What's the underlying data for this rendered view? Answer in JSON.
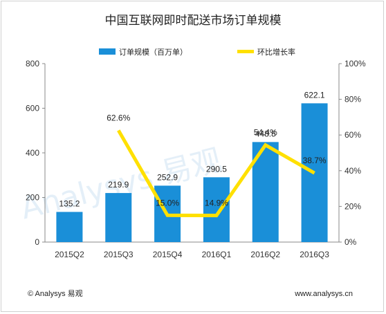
{
  "chart_data": {
    "type": "bar",
    "title": "中国互联网即时配送市场订单规模",
    "categories": [
      "2015Q2",
      "2015Q3",
      "2015Q4",
      "2016Q1",
      "2016Q2",
      "2016Q3"
    ],
    "series": [
      {
        "name": "订单规模（百万单）",
        "type": "bar",
        "axis": "left",
        "color": "#1a8fd8",
        "values": [
          135.2,
          219.9,
          252.9,
          290.5,
          448.5,
          622.1
        ],
        "labels": [
          "135.2",
          "219.9",
          "252.9",
          "290.5",
          "448.5",
          "622.1"
        ]
      },
      {
        "name": "环比增长率",
        "type": "line",
        "axis": "right",
        "color": "#ffe000",
        "values": [
          null,
          62.6,
          15.0,
          14.9,
          54.4,
          38.7
        ],
        "labels": [
          "",
          "62.6%",
          "15.0%",
          "14.9%",
          "54.4%",
          "38.7%"
        ]
      }
    ],
    "y_left": {
      "min": 0,
      "max": 800,
      "ticks": [
        "0",
        "200",
        "400",
        "600",
        "800"
      ]
    },
    "y_right": {
      "min": 0,
      "max": 100,
      "ticks": [
        "0%",
        "20%",
        "40%",
        "60%",
        "80%",
        "100%"
      ]
    },
    "legend_position": "top",
    "grid": false
  },
  "watermark": {
    "text": "Analysys 易观"
  },
  "footer": {
    "left": "© Analysys 易观",
    "right": "www.analysys.cn"
  }
}
